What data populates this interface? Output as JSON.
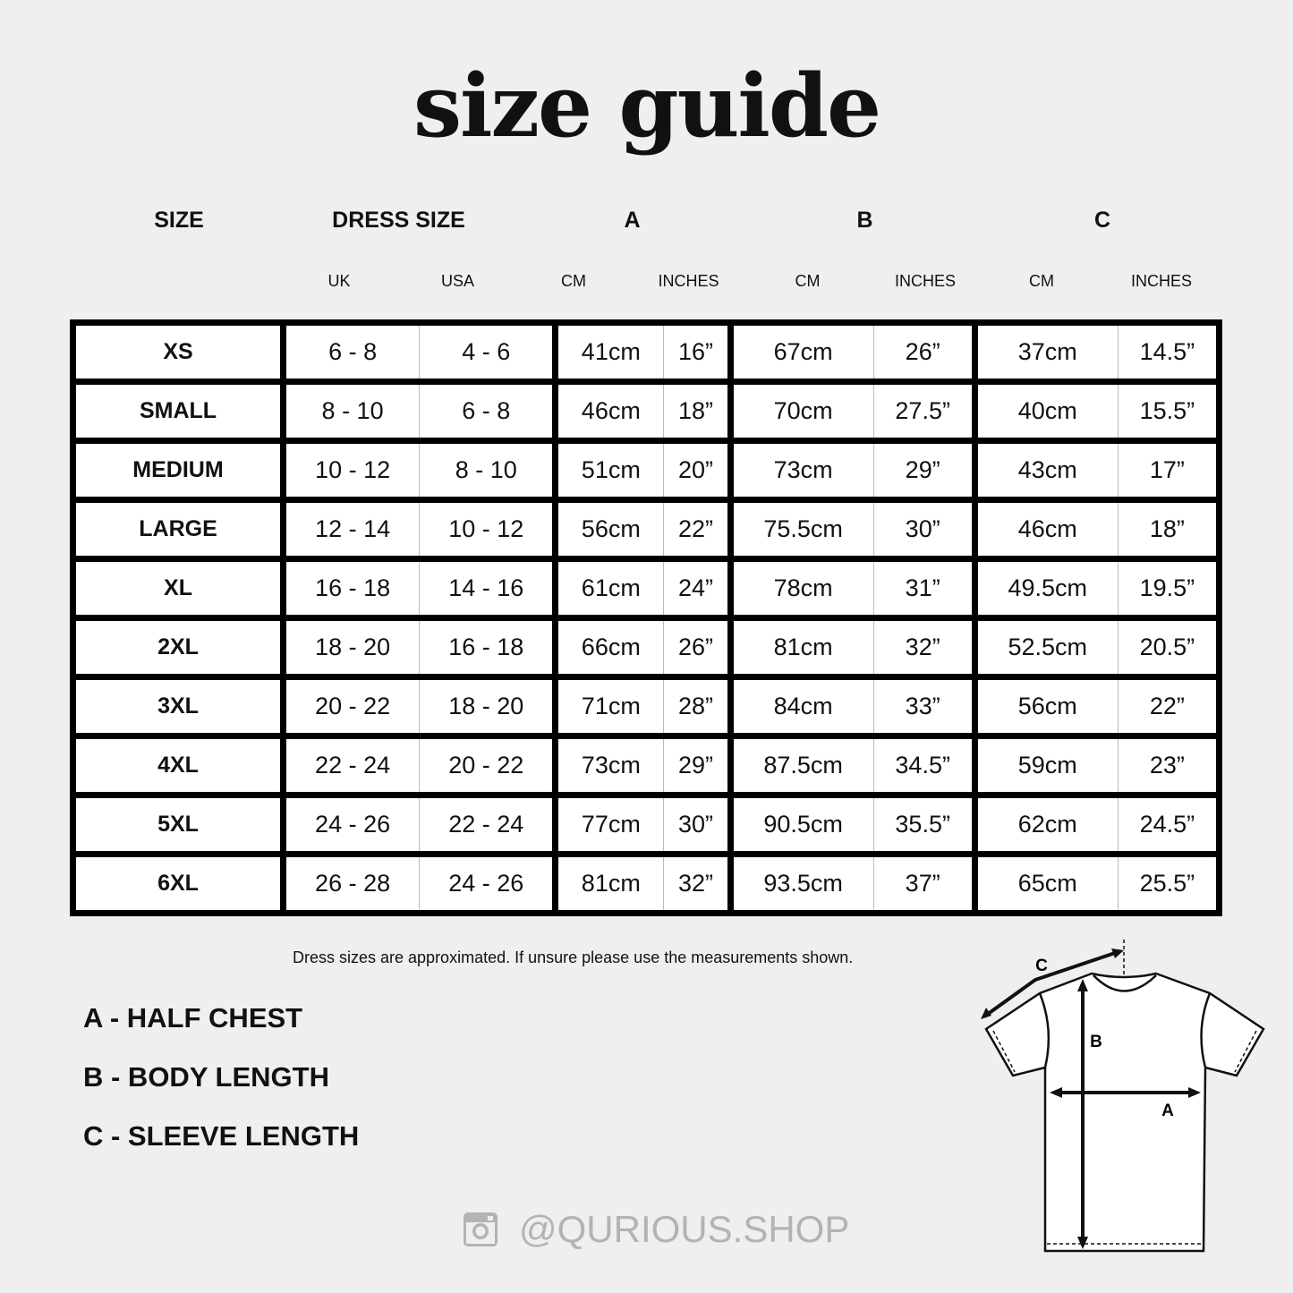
{
  "title": "size guide",
  "headers": {
    "size": "SIZE",
    "dress_size": "DRESS SIZE",
    "a": "A",
    "b": "B",
    "c": "C"
  },
  "subheaders": [
    "UK",
    "USA",
    "CM",
    "INCHES",
    "CM",
    "INCHES",
    "CM",
    "INCHES"
  ],
  "rows": [
    [
      "XS",
      "6 - 8",
      "4 - 6",
      "41cm",
      "16”",
      "67cm",
      "26”",
      "37cm",
      "14.5”"
    ],
    [
      "SMALL",
      "8 - 10",
      "6 - 8",
      "46cm",
      "18”",
      "70cm",
      "27.5”",
      "40cm",
      "15.5”"
    ],
    [
      "MEDIUM",
      "10 - 12",
      "8 - 10",
      "51cm",
      "20”",
      "73cm",
      "29”",
      "43cm",
      "17”"
    ],
    [
      "LARGE",
      "12 - 14",
      "10 - 12",
      "56cm",
      "22”",
      "75.5cm",
      "30”",
      "46cm",
      "18”"
    ],
    [
      "XL",
      "16 - 18",
      "14 - 16",
      "61cm",
      "24”",
      "78cm",
      "31”",
      "49.5cm",
      "19.5”"
    ],
    [
      "2XL",
      "18 - 20",
      "16 - 18",
      "66cm",
      "26”",
      "81cm",
      "32”",
      "52.5cm",
      "20.5”"
    ],
    [
      "3XL",
      "20 - 22",
      "18 - 20",
      "71cm",
      "28”",
      "84cm",
      "33”",
      "56cm",
      "22”"
    ],
    [
      "4XL",
      "22 - 24",
      "20 - 22",
      "73cm",
      "29”",
      "87.5cm",
      "34.5”",
      "59cm",
      "23”"
    ],
    [
      "5XL",
      "24 - 26",
      "22 - 24",
      "77cm",
      "30”",
      "90.5cm",
      "35.5”",
      "62cm",
      "24.5”"
    ],
    [
      "6XL",
      "26 - 28",
      "24 - 26",
      "81cm",
      "32”",
      "93.5cm",
      "37”",
      "65cm",
      "25.5”"
    ]
  ],
  "note": "Dress sizes are approximated. If unsure please use the measurements shown.",
  "legend": [
    "A - HALF CHEST",
    "B - BODY LENGTH",
    "C - SLEEVE LENGTH"
  ],
  "diagram": {
    "a": "A",
    "b": "B",
    "c": "C"
  },
  "social": {
    "icon": "instagram-icon",
    "handle": "@QURIOUS.SHOP"
  }
}
